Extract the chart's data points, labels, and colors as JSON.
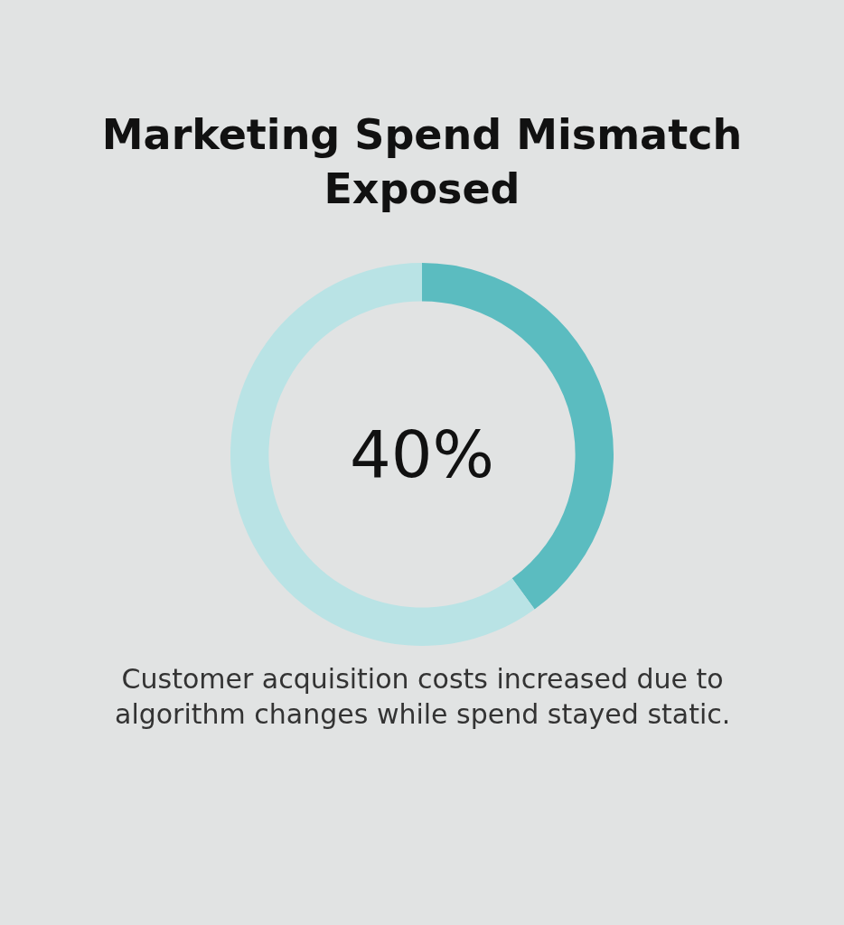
{
  "chart_data": {
    "type": "donut",
    "title": "Marketing Spend Mismatch Exposed",
    "categories": [
      null,
      null
    ],
    "values": [
      40,
      60
    ],
    "colors": [
      "#5bbcc0",
      "#b9e3e5"
    ],
    "value_labels": [
      "40%",
      null
    ],
    "annotations": [
      "Customer acquisition costs increased due to algorithm changes while spend stayed static."
    ],
    "legend": false
  }
}
